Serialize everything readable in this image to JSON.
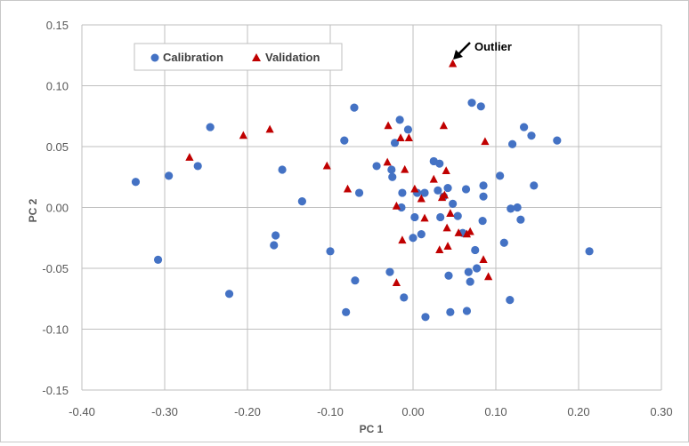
{
  "chart_data": {
    "type": "scatter",
    "title": "",
    "xlabel": "PC 1",
    "ylabel": "PC 2",
    "xlim": [
      -0.4,
      0.3
    ],
    "ylim": [
      -0.15,
      0.15
    ],
    "x_ticks": [
      "-0.40",
      "-0.30",
      "-0.20",
      "-0.10",
      "0.00",
      "0.10",
      "0.20",
      "0.30"
    ],
    "y_ticks": [
      "0.15",
      "0.10",
      "0.05",
      "0.00",
      "-0.05",
      "-0.10",
      "-0.15"
    ],
    "grid": true,
    "legend_position": "top-left",
    "series": [
      {
        "name": "Calibration",
        "marker": "circle",
        "color": "#4472C4",
        "points": [
          [
            -0.335,
            0.021
          ],
          [
            -0.308,
            -0.043
          ],
          [
            -0.295,
            0.026
          ],
          [
            -0.26,
            0.034
          ],
          [
            -0.245,
            0.066
          ],
          [
            -0.222,
            -0.071
          ],
          [
            -0.168,
            -0.031
          ],
          [
            -0.166,
            -0.023
          ],
          [
            -0.158,
            0.031
          ],
          [
            -0.134,
            0.005
          ],
          [
            -0.1,
            -0.036
          ],
          [
            -0.083,
            0.055
          ],
          [
            -0.081,
            -0.086
          ],
          [
            -0.071,
            0.082
          ],
          [
            -0.07,
            -0.06
          ],
          [
            -0.065,
            0.012
          ],
          [
            -0.044,
            0.034
          ],
          [
            -0.028,
            -0.053
          ],
          [
            -0.026,
            0.031
          ],
          [
            -0.025,
            0.025
          ],
          [
            -0.022,
            0.053
          ],
          [
            -0.016,
            0.072
          ],
          [
            -0.014,
            0.0
          ],
          [
            -0.013,
            0.012
          ],
          [
            -0.011,
            -0.074
          ],
          [
            -0.006,
            0.064
          ],
          [
            0.0,
            -0.025
          ],
          [
            0.002,
            -0.008
          ],
          [
            0.005,
            0.012
          ],
          [
            0.01,
            -0.022
          ],
          [
            0.014,
            0.012
          ],
          [
            0.015,
            -0.09
          ],
          [
            0.025,
            0.038
          ],
          [
            0.03,
            0.014
          ],
          [
            0.032,
            0.036
          ],
          [
            0.033,
            -0.008
          ],
          [
            0.037,
            0.009
          ],
          [
            0.042,
            0.016
          ],
          [
            0.043,
            -0.056
          ],
          [
            0.045,
            -0.086
          ],
          [
            0.048,
            0.003
          ],
          [
            0.054,
            -0.007
          ],
          [
            0.06,
            -0.021
          ],
          [
            0.064,
            0.015
          ],
          [
            0.065,
            -0.085
          ],
          [
            0.067,
            -0.053
          ],
          [
            0.069,
            -0.061
          ],
          [
            0.071,
            0.086
          ],
          [
            0.075,
            -0.035
          ],
          [
            0.077,
            -0.05
          ],
          [
            0.082,
            0.083
          ],
          [
            0.084,
            -0.011
          ],
          [
            0.085,
            0.018
          ],
          [
            0.085,
            0.009
          ],
          [
            0.105,
            0.026
          ],
          [
            0.11,
            -0.029
          ],
          [
            0.117,
            -0.076
          ],
          [
            0.118,
            -0.001
          ],
          [
            0.12,
            0.052
          ],
          [
            0.126,
            0.0
          ],
          [
            0.13,
            -0.01
          ],
          [
            0.134,
            0.066
          ],
          [
            0.143,
            0.059
          ],
          [
            0.146,
            0.018
          ],
          [
            0.174,
            0.055
          ],
          [
            0.213,
            -0.036
          ]
        ]
      },
      {
        "name": "Validation",
        "marker": "triangle",
        "color": "#C00000",
        "points": [
          [
            -0.27,
            0.041
          ],
          [
            -0.205,
            0.059
          ],
          [
            -0.173,
            0.064
          ],
          [
            -0.104,
            0.034
          ],
          [
            -0.079,
            0.015
          ],
          [
            -0.031,
            0.037
          ],
          [
            -0.03,
            0.067
          ],
          [
            -0.02,
            0.001
          ],
          [
            -0.02,
            -0.062
          ],
          [
            -0.015,
            0.057
          ],
          [
            -0.013,
            -0.027
          ],
          [
            -0.01,
            0.031
          ],
          [
            -0.005,
            0.057
          ],
          [
            0.002,
            0.015
          ],
          [
            0.01,
            0.007
          ],
          [
            0.014,
            -0.009
          ],
          [
            0.025,
            0.023
          ],
          [
            0.032,
            -0.035
          ],
          [
            0.035,
            0.008
          ],
          [
            0.037,
            0.067
          ],
          [
            0.038,
            0.01
          ],
          [
            0.04,
            0.03
          ],
          [
            0.041,
            -0.017
          ],
          [
            0.042,
            -0.032
          ],
          [
            0.045,
            -0.005
          ],
          [
            0.048,
            0.118
          ],
          [
            0.055,
            -0.021
          ],
          [
            0.065,
            -0.022
          ],
          [
            0.069,
            -0.02
          ],
          [
            0.085,
            -0.043
          ],
          [
            0.087,
            0.054
          ],
          [
            0.091,
            -0.057
          ]
        ]
      }
    ],
    "annotations": [
      {
        "text": "Outlier",
        "point": [
          0.048,
          0.118
        ]
      }
    ]
  }
}
